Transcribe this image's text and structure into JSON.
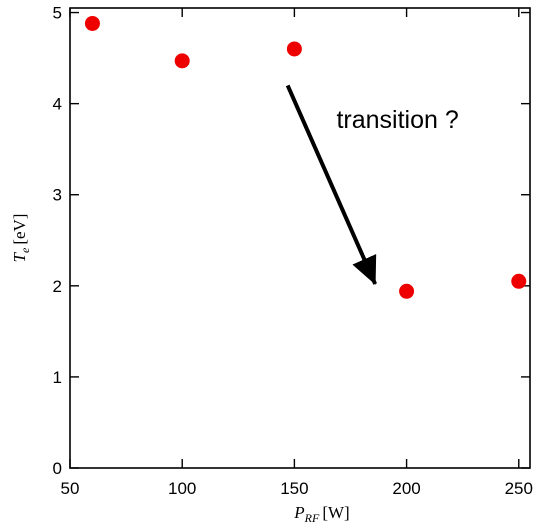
{
  "chart_data": {
    "type": "scatter",
    "xlim": [
      50,
      255
    ],
    "ylim": [
      0,
      5.05
    ],
    "xticks": [
      50,
      100,
      150,
      200,
      250
    ],
    "yticks": [
      0,
      1,
      2,
      3,
      4,
      5
    ],
    "xlabel": {
      "symbol": "P",
      "subscript": "RF",
      "unit": "[W]"
    },
    "ylabel": {
      "symbol": "T",
      "subscript": "e",
      "unit": "[eV]"
    },
    "grid": false,
    "legend": "none",
    "marker_color": "#ee0000",
    "series": [
      {
        "x": [
          60,
          100,
          150,
          200,
          250
        ],
        "y": [
          4.88,
          4.47,
          4.6,
          1.94,
          2.05
        ]
      }
    ],
    "annotations": [
      {
        "text": "transition ?",
        "x": 196,
        "y": 3.73
      },
      {
        "type": "arrow",
        "from": [
          147,
          4.2
        ],
        "to": [
          186,
          2.02
        ]
      }
    ]
  }
}
